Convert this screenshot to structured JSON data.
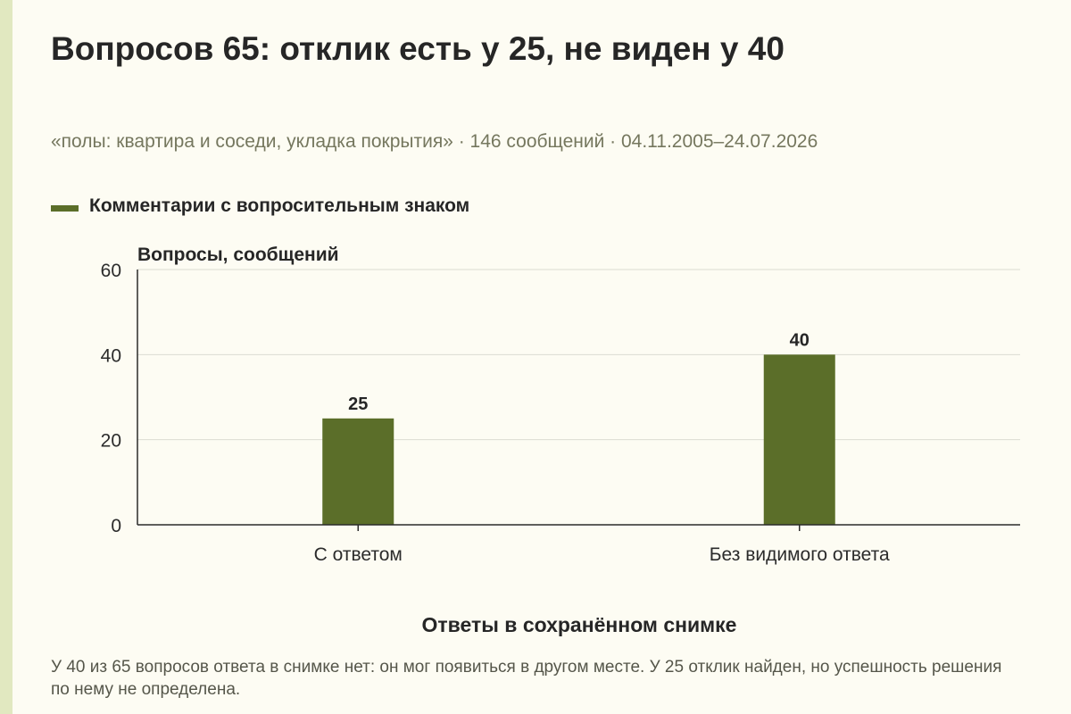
{
  "header": {
    "title": "Вопросов 65: отклик есть у 25, не виден у 40",
    "subtitle": "«полы: квартира и соседи, укладка покрытия» · 146 сообщений · 04.11.2005–24.07.2026"
  },
  "footnote": "У 40 из 65 вопросов ответа в снимке нет: он мог появиться в другом месте. У 25 отклик найден, но успешность решения по нему не определена.",
  "colors": {
    "bar": "#5b6e29",
    "grid": "#dcdcd2",
    "axis": "#2b2b2b",
    "background": "#fdfcf3",
    "left_band": "#e1e8c0"
  },
  "chart_data": {
    "type": "bar",
    "categories": [
      "С ответом",
      "Без видимого ответа"
    ],
    "series": [
      {
        "name": "Комментарии с вопросительным знаком",
        "values": [
          25,
          40
        ]
      }
    ],
    "data_labels": [
      "25",
      "40"
    ],
    "ylabel": "Вопросы, сообщений",
    "xlabel": "Ответы в сохранённом снимке",
    "ylim": [
      0,
      60
    ],
    "yticks": [
      0,
      20,
      40,
      60
    ],
    "grid": true,
    "legend": "top-left"
  }
}
